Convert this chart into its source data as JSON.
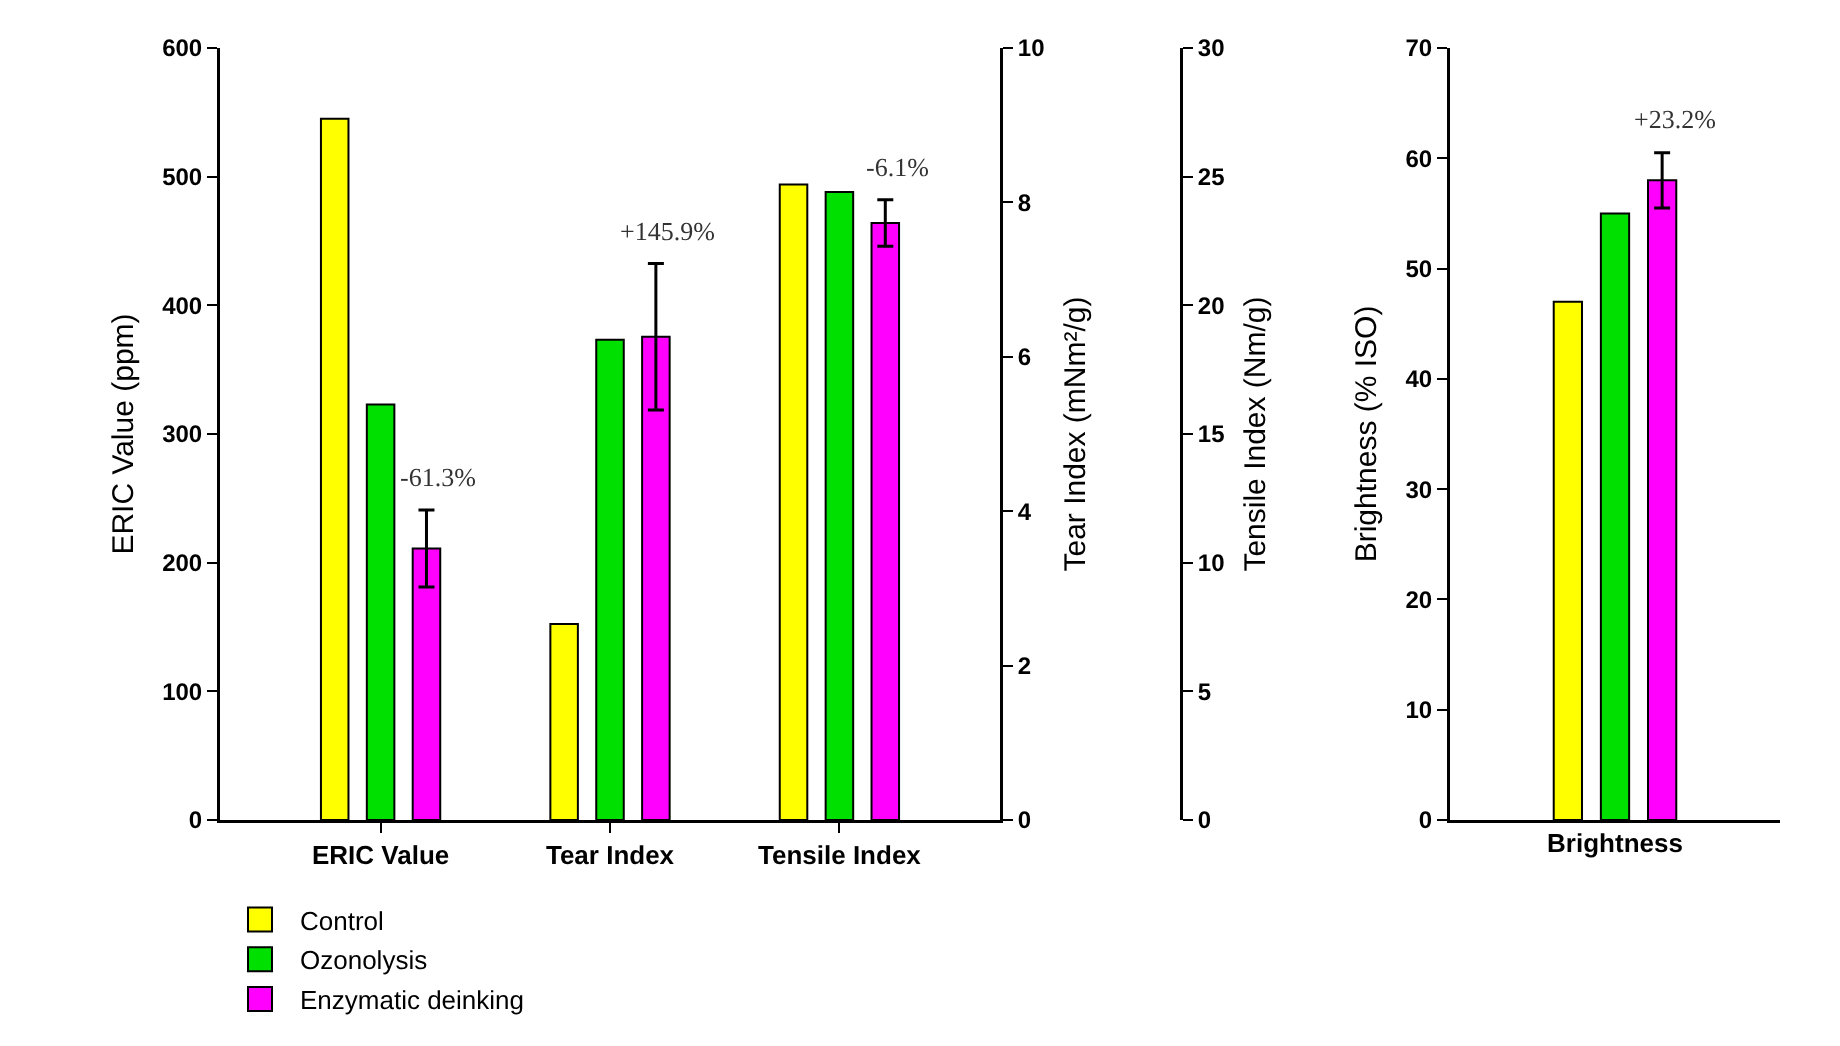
{
  "chart_data": [
    {
      "type": "bar",
      "categories": [
        "ERIC Value",
        "Tear Index",
        "Tensile Index"
      ],
      "ylabel": "ERIC Value (ppm)",
      "y2label": "Tear Index (mNm²/g)",
      "y3label": "Tensile Index (Nm/g)",
      "ylim": [
        0,
        600
      ],
      "yticks": [
        0,
        100,
        200,
        300,
        400,
        500,
        600
      ],
      "y2lim": [
        0,
        10
      ],
      "y2ticks": [
        0,
        2,
        4,
        6,
        8,
        10
      ],
      "y3lim": [
        0,
        30
      ],
      "y3ticks": [
        0,
        5,
        10,
        15,
        20,
        25,
        30
      ],
      "series": [
        {
          "name": "Control",
          "color": "#ffff00",
          "values": [
            545,
            null,
            null
          ]
        },
        {
          "name": "Ozonolysis",
          "color": "#00e000",
          "values": [
            323,
            null,
            null
          ]
        },
        {
          "name": "Enzymatic deinking",
          "color": "#ff00ff",
          "values": [
            211,
            null,
            null
          ],
          "errors": [
            30,
            null,
            null
          ]
        },
        {
          "axis": "y2",
          "color": "#ffff00",
          "values": [
            null,
            2.54,
            null
          ]
        },
        {
          "axis": "y2",
          "color": "#00e000",
          "values": [
            null,
            6.22,
            null
          ]
        },
        {
          "axis": "y2",
          "color": "#ff00ff",
          "values": [
            null,
            6.26,
            null
          ],
          "errors": [
            null,
            0.95,
            null
          ]
        },
        {
          "axis": "y3",
          "color": "#ffff00",
          "values": [
            null,
            null,
            24.7
          ]
        },
        {
          "axis": "y3",
          "color": "#00e000",
          "values": [
            null,
            null,
            24.4
          ]
        },
        {
          "axis": "y3",
          "color": "#ff00ff",
          "values": [
            null,
            null,
            23.2
          ],
          "errors": [
            null,
            null,
            0.9
          ]
        }
      ],
      "annotations": [
        "-61.3%",
        "+145.9%",
        "-6.1%"
      ],
      "legend": "bottom left",
      "grid": false
    },
    {
      "type": "bar",
      "categories": [
        null
      ],
      "xlabel": "Brightness",
      "ylabel": "Brightness (% ISO)",
      "ylim": [
        0,
        70
      ],
      "yticks": [
        0,
        10,
        20,
        30,
        40,
        50,
        60,
        70
      ],
      "tick_labels": "y",
      "series": [
        {
          "color": "#ffff00",
          "values": [
            47
          ]
        },
        {
          "color": "#00e000",
          "values": [
            55
          ]
        },
        {
          "color": "#ff00ff",
          "values": [
            58
          ],
          "errors": [
            2.5
          ]
        }
      ],
      "annotations": [
        "+23.2%"
      ],
      "grid": false
    }
  ]
}
